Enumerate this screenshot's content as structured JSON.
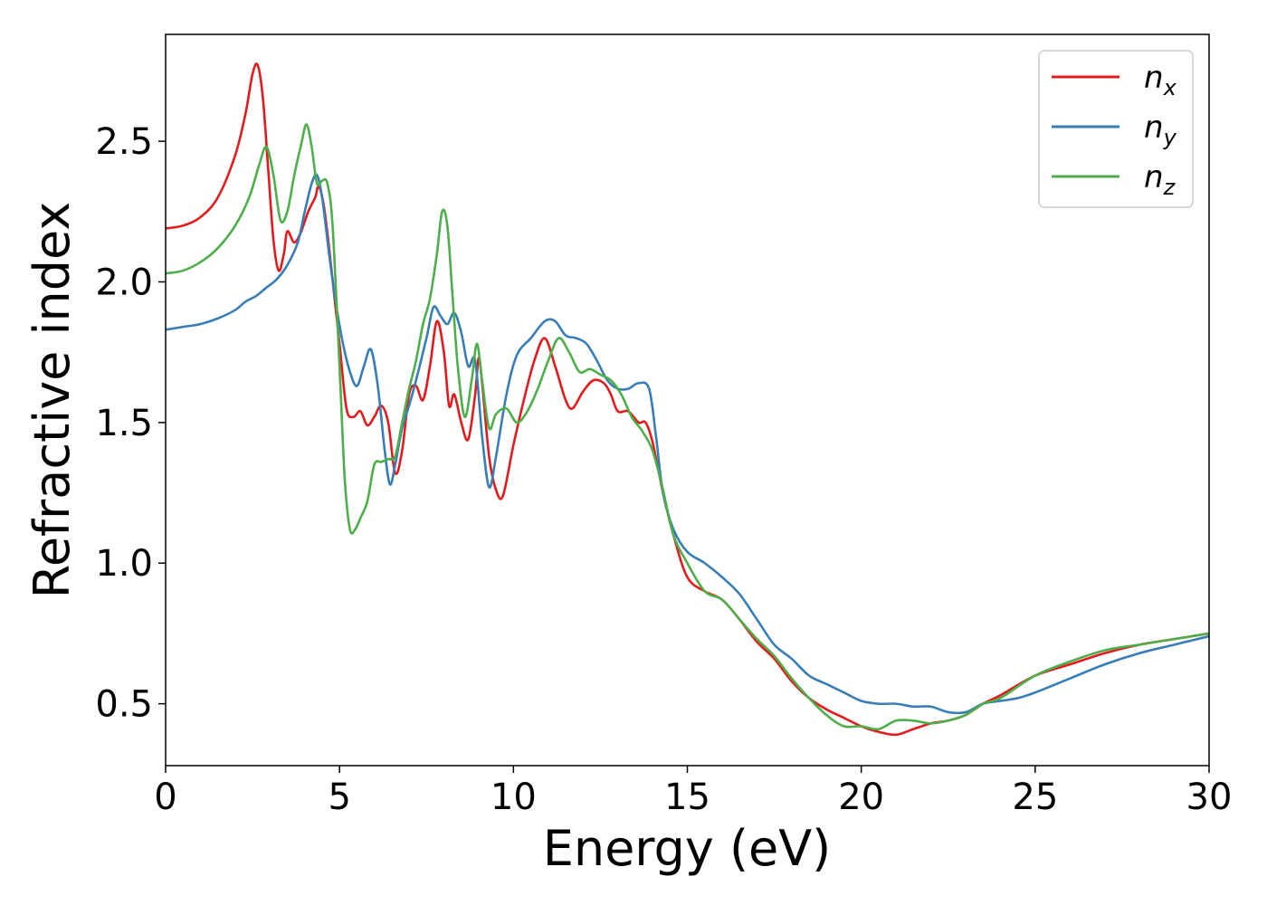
{
  "chart_data": {
    "type": "line",
    "title": "",
    "xlabel": "Energy (eV)",
    "ylabel": "Refractive index",
    "xlim": [
      0,
      30
    ],
    "ylim": [
      0.28,
      2.88
    ],
    "xticks": [
      0,
      5,
      10,
      15,
      20,
      25,
      30
    ],
    "xtick_labels": [
      "0",
      "5",
      "10",
      "15",
      "20",
      "25",
      "30"
    ],
    "yticks": [
      0.5,
      1.0,
      1.5,
      2.0,
      2.5
    ],
    "ytick_labels": [
      "0.5",
      "1.0",
      "1.5",
      "2.0",
      "2.5"
    ],
    "grid": false,
    "legend_position": "top-right",
    "series": [
      {
        "name": "n",
        "sub": "x",
        "color": "#e41a1c",
        "x": [
          0,
          0.5,
          1.0,
          1.5,
          2.0,
          2.3,
          2.5,
          2.65,
          2.8,
          2.95,
          3.1,
          3.25,
          3.4,
          3.5,
          3.7,
          3.9,
          4.1,
          4.3,
          4.4,
          4.55,
          4.7,
          4.85,
          5.0,
          5.2,
          5.4,
          5.6,
          5.8,
          6.0,
          6.2,
          6.4,
          6.6,
          6.8,
          7.0,
          7.2,
          7.4,
          7.6,
          7.8,
          8.0,
          8.15,
          8.3,
          8.5,
          8.7,
          8.9,
          9.0,
          9.1,
          9.3,
          9.5,
          9.7,
          10.0,
          10.3,
          10.6,
          10.9,
          11.2,
          11.5,
          11.7,
          12.0,
          12.3,
          12.6,
          12.8,
          13.0,
          13.3,
          13.6,
          13.8,
          14.0,
          14.3,
          14.6,
          15.0,
          15.5,
          16.0,
          16.5,
          17.0,
          17.5,
          18.0,
          18.5,
          19.0,
          19.5,
          20.0,
          20.5,
          21.0,
          21.5,
          22.0,
          22.5,
          23.0,
          23.5,
          24.0,
          25.0,
          26.0,
          27.0,
          28.0,
          29.0,
          30.0
        ],
        "y": [
          2.19,
          2.2,
          2.23,
          2.3,
          2.45,
          2.6,
          2.74,
          2.77,
          2.65,
          2.4,
          2.15,
          2.04,
          2.1,
          2.18,
          2.14,
          2.18,
          2.25,
          2.3,
          2.34,
          2.27,
          2.12,
          1.95,
          1.78,
          1.55,
          1.52,
          1.54,
          1.49,
          1.52,
          1.56,
          1.5,
          1.32,
          1.4,
          1.6,
          1.63,
          1.58,
          1.7,
          1.86,
          1.75,
          1.56,
          1.6,
          1.5,
          1.44,
          1.6,
          1.73,
          1.64,
          1.38,
          1.26,
          1.24,
          1.42,
          1.58,
          1.72,
          1.8,
          1.7,
          1.58,
          1.55,
          1.61,
          1.65,
          1.64,
          1.6,
          1.54,
          1.54,
          1.5,
          1.5,
          1.43,
          1.25,
          1.1,
          0.95,
          0.9,
          0.87,
          0.8,
          0.72,
          0.66,
          0.58,
          0.52,
          0.48,
          0.45,
          0.42,
          0.4,
          0.39,
          0.41,
          0.43,
          0.44,
          0.46,
          0.5,
          0.53,
          0.6,
          0.64,
          0.68,
          0.71,
          0.73,
          0.75
        ]
      },
      {
        "name": "n",
        "sub": "y",
        "color": "#377eb8",
        "x": [
          0,
          0.5,
          1.0,
          1.5,
          2.0,
          2.3,
          2.6,
          2.9,
          3.2,
          3.5,
          3.8,
          4.0,
          4.2,
          4.35,
          4.5,
          4.7,
          4.9,
          5.1,
          5.3,
          5.5,
          5.7,
          5.9,
          6.1,
          6.3,
          6.45,
          6.6,
          6.8,
          7.0,
          7.2,
          7.5,
          7.7,
          7.9,
          8.1,
          8.3,
          8.5,
          8.7,
          8.9,
          9.1,
          9.3,
          9.5,
          9.8,
          10.1,
          10.5,
          10.9,
          11.2,
          11.5,
          11.8,
          12.1,
          12.4,
          12.7,
          13.0,
          13.3,
          13.6,
          13.9,
          14.1,
          14.3,
          14.6,
          15.0,
          15.5,
          16.0,
          16.5,
          17.0,
          17.5,
          18.0,
          18.5,
          19.0,
          19.5,
          20.0,
          20.5,
          21.0,
          21.5,
          22.0,
          22.5,
          23.0,
          23.5,
          24.0,
          24.5,
          25.0,
          26.0,
          27.0,
          28.0,
          29.0,
          30.0
        ],
        "y": [
          1.83,
          1.84,
          1.85,
          1.87,
          1.9,
          1.93,
          1.95,
          1.98,
          2.01,
          2.06,
          2.14,
          2.25,
          2.35,
          2.38,
          2.3,
          2.1,
          1.92,
          1.78,
          1.68,
          1.63,
          1.7,
          1.76,
          1.63,
          1.4,
          1.28,
          1.35,
          1.48,
          1.56,
          1.65,
          1.8,
          1.91,
          1.88,
          1.85,
          1.89,
          1.82,
          1.7,
          1.72,
          1.45,
          1.27,
          1.38,
          1.6,
          1.74,
          1.8,
          1.86,
          1.86,
          1.81,
          1.8,
          1.78,
          1.72,
          1.65,
          1.62,
          1.62,
          1.64,
          1.62,
          1.45,
          1.25,
          1.12,
          1.04,
          1.0,
          0.95,
          0.89,
          0.8,
          0.71,
          0.66,
          0.6,
          0.57,
          0.54,
          0.51,
          0.5,
          0.5,
          0.49,
          0.49,
          0.47,
          0.47,
          0.5,
          0.51,
          0.52,
          0.54,
          0.59,
          0.64,
          0.68,
          0.71,
          0.74
        ]
      },
      {
        "name": "n",
        "sub": "z",
        "color": "#4daf4a",
        "x": [
          0,
          0.5,
          1.0,
          1.5,
          2.0,
          2.4,
          2.7,
          2.9,
          3.1,
          3.3,
          3.5,
          3.7,
          3.9,
          4.05,
          4.2,
          4.35,
          4.5,
          4.65,
          4.8,
          5.0,
          5.15,
          5.3,
          5.45,
          5.6,
          5.8,
          6.0,
          6.2,
          6.4,
          6.6,
          6.8,
          7.0,
          7.2,
          7.4,
          7.6,
          7.8,
          7.95,
          8.1,
          8.25,
          8.4,
          8.6,
          8.8,
          8.95,
          9.1,
          9.3,
          9.5,
          9.8,
          10.1,
          10.4,
          10.7,
          11.0,
          11.3,
          11.6,
          11.9,
          12.2,
          12.5,
          12.8,
          13.1,
          13.4,
          13.7,
          14.0,
          14.3,
          14.6,
          15.0,
          15.5,
          16.0,
          16.5,
          17.0,
          17.5,
          18.0,
          18.5,
          19.0,
          19.5,
          20.0,
          20.5,
          21.0,
          21.5,
          22.0,
          22.5,
          23.0,
          23.5,
          24.0,
          25.0,
          26.0,
          27.0,
          28.0,
          29.0,
          30.0
        ],
        "y": [
          2.03,
          2.04,
          2.07,
          2.12,
          2.2,
          2.3,
          2.42,
          2.48,
          2.38,
          2.22,
          2.25,
          2.38,
          2.49,
          2.56,
          2.48,
          2.35,
          2.36,
          2.35,
          2.2,
          1.7,
          1.3,
          1.12,
          1.12,
          1.16,
          1.22,
          1.35,
          1.36,
          1.37,
          1.38,
          1.5,
          1.62,
          1.72,
          1.85,
          1.94,
          2.1,
          2.25,
          2.2,
          1.95,
          1.7,
          1.52,
          1.65,
          1.78,
          1.65,
          1.48,
          1.53,
          1.55,
          1.5,
          1.54,
          1.62,
          1.72,
          1.8,
          1.75,
          1.68,
          1.69,
          1.67,
          1.65,
          1.6,
          1.52,
          1.47,
          1.4,
          1.26,
          1.1,
          1.0,
          0.9,
          0.87,
          0.8,
          0.73,
          0.67,
          0.59,
          0.52,
          0.46,
          0.42,
          0.42,
          0.41,
          0.44,
          0.44,
          0.43,
          0.44,
          0.46,
          0.5,
          0.52,
          0.6,
          0.65,
          0.69,
          0.71,
          0.73,
          0.75
        ]
      }
    ]
  }
}
